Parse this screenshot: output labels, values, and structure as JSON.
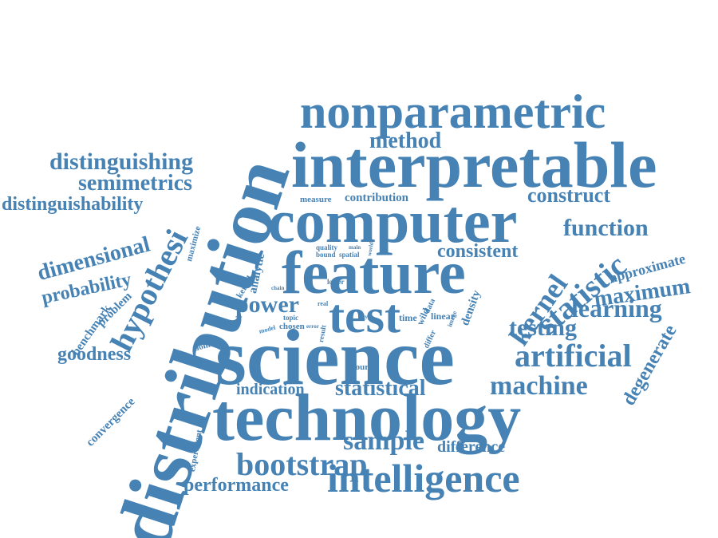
{
  "style": {
    "word_color": "#4682b4",
    "background": "#ffffff"
  },
  "words": {
    "distribution": "distribution",
    "nonparametric": "nonparametric",
    "interpretable": "interpretable",
    "method": "method",
    "distinguishing": "distinguishing",
    "semimetrics": "semimetrics",
    "distinguishability": "distinguishability",
    "measure": "measure",
    "contribution": "contribution",
    "construct": "construct",
    "computer": "computer",
    "function": "function",
    "dimensional": "dimensional",
    "hypothesis": "hypothesi",
    "maximize": "maximize",
    "quality": "quality",
    "main": "main",
    "bound": "bound",
    "spatial": "spatial",
    "world": "world",
    "consistent": "consistent",
    "probability": "probability",
    "analytic": "analytic",
    "kernel_small": "kernel",
    "feature": "feature",
    "approximate": "approximate",
    "statistic": "statistic",
    "kernel": "kernel",
    "maximum": "maximum",
    "benchmark": "benchmark",
    "problem": "problem",
    "chain": "chain",
    "lower": "lower",
    "power": "power",
    "real": "real",
    "test": "test",
    "learning": "learning",
    "model": "model",
    "topic": "topic",
    "chosen": "chosen",
    "error": "error",
    "type": "type",
    "time": "time",
    "wild": "wild",
    "data": "data",
    "linear": "linear",
    "image": "image",
    "density": "density",
    "differ": "differ",
    "result": "result",
    "testing": "testing",
    "domain": "domain",
    "goodness": "goodness",
    "science": "science",
    "artificial": "artificial",
    "degenerate": "degenerate",
    "fourier": "fourier",
    "convergence": "convergence",
    "indication": "indication",
    "statistical": "statistical",
    "machine": "machine",
    "technology": "technology",
    "experiment": "experiment",
    "sample": "sample",
    "difference": "difference",
    "bootstrap": "bootstrap",
    "performance": "performance",
    "intelligence": "intelligence"
  }
}
